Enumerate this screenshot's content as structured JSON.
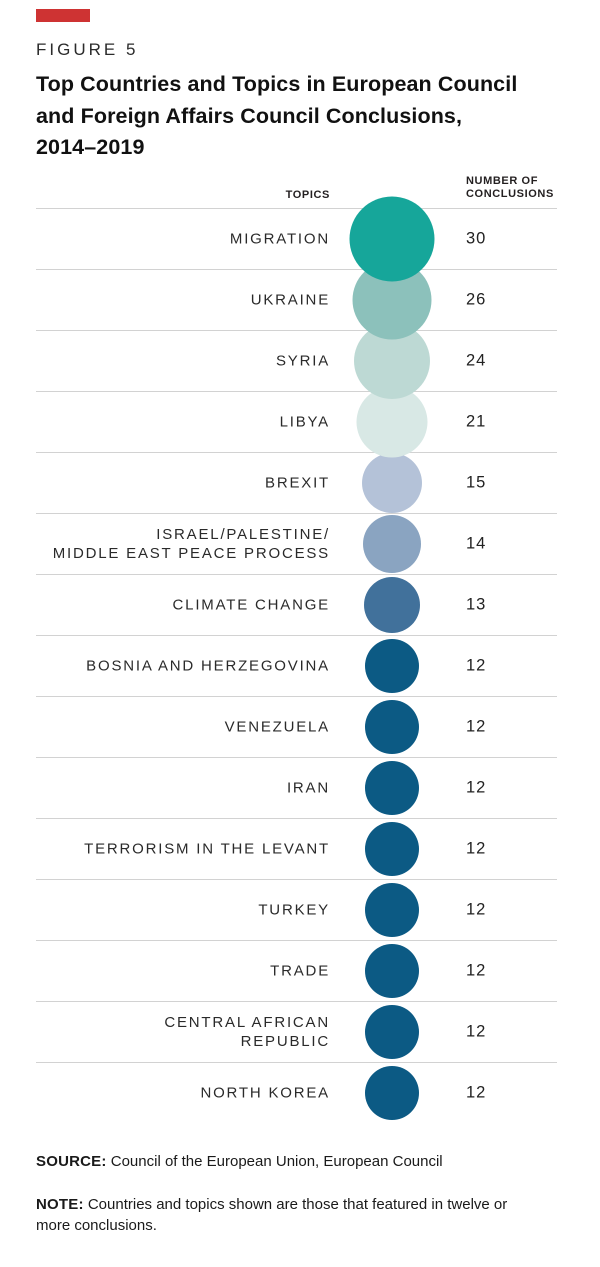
{
  "accent": {
    "red_block_color": "#ce3333"
  },
  "figure": {
    "label": "FIGURE 5",
    "title_lines": [
      "Top Countries and Topics in European Council",
      "and Foreign Affairs Council Conclusions,",
      "2014–2019"
    ]
  },
  "table_headers": {
    "topics": "TOPICS",
    "conclusions_lines": [
      "NUMBER OF",
      "CONCLUSIONS"
    ]
  },
  "rows": [
    {
      "label_lines": [
        "MIGRATION"
      ],
      "value": "30",
      "color": "#16a69a"
    },
    {
      "label_lines": [
        "UKRAINE"
      ],
      "value": "26",
      "color": "#8cc1bb"
    },
    {
      "label_lines": [
        "SYRIA"
      ],
      "value": "24",
      "color": "#bdd9d4"
    },
    {
      "label_lines": [
        "LIBYA"
      ],
      "value": "21",
      "color": "#d8e8e5"
    },
    {
      "label_lines": [
        "BREXIT"
      ],
      "value": "15",
      "color": "#b4c2d8"
    },
    {
      "label_lines": [
        "ISRAEL/PALESTINE/",
        "MIDDLE EAST PEACE PROCESS"
      ],
      "value": "14",
      "color": "#8aa4c1"
    },
    {
      "label_lines": [
        "CLIMATE CHANGE"
      ],
      "value": "13",
      "color": "#41719b"
    },
    {
      "label_lines": [
        "BOSNIA AND HERZEGOVINA"
      ],
      "value": "12",
      "color": "#0c5a84"
    },
    {
      "label_lines": [
        "VENEZUELA"
      ],
      "value": "12",
      "color": "#0c5a84"
    },
    {
      "label_lines": [
        "IRAN"
      ],
      "value": "12",
      "color": "#0c5a84"
    },
    {
      "label_lines": [
        "TERRORISM IN THE LEVANT"
      ],
      "value": "12",
      "color": "#0c5a84"
    },
    {
      "label_lines": [
        "TURKEY"
      ],
      "value": "12",
      "color": "#0c5a84"
    },
    {
      "label_lines": [
        "TRADE"
      ],
      "value": "12",
      "color": "#0c5a84"
    },
    {
      "label_lines": [
        "CENTRAL AFRICAN",
        "REPUBLIC"
      ],
      "value": "12",
      "color": "#0c5a84"
    },
    {
      "label_lines": [
        "NORTH KOREA"
      ],
      "value": "12",
      "color": "#0c5a84"
    }
  ],
  "chart_data": {
    "type": "bubble",
    "title": "Top Countries and Topics in European Council and Foreign Affairs Council Conclusions, 2014–2019",
    "categories": [
      "Migration",
      "Ukraine",
      "Syria",
      "Libya",
      "Brexit",
      "Israel/Palestine/Middle East Peace Process",
      "Climate Change",
      "Bosnia and Herzegovina",
      "Venezuela",
      "Iran",
      "Terrorism in the Levant",
      "Turkey",
      "Trade",
      "Central African Republic",
      "North Korea"
    ],
    "values": [
      30,
      26,
      24,
      21,
      15,
      14,
      13,
      12,
      12,
      12,
      12,
      12,
      12,
      12,
      12
    ],
    "value_label": "Number of Conclusions",
    "category_label": "Topics",
    "bubble_colors": [
      "#16a69a",
      "#8cc1bb",
      "#bdd9d4",
      "#d8e8e5",
      "#b4c2d8",
      "#8aa4c1",
      "#41719b",
      "#0c5a84",
      "#0c5a84",
      "#0c5a84",
      "#0c5a84",
      "#0c5a84",
      "#0c5a84",
      "#0c5a84",
      "#0c5a84"
    ],
    "size_encoding": "circle area proportional to value",
    "grid": "horizontal row separators",
    "legend_position": "none"
  },
  "footer": {
    "source_label": "SOURCE:",
    "source_text": "Council of the European Union, European Council",
    "note_label": "NOTE:",
    "note_lines": [
      "Countries and topics shown are those that featured in twelve or",
      "more conclusions."
    ]
  }
}
